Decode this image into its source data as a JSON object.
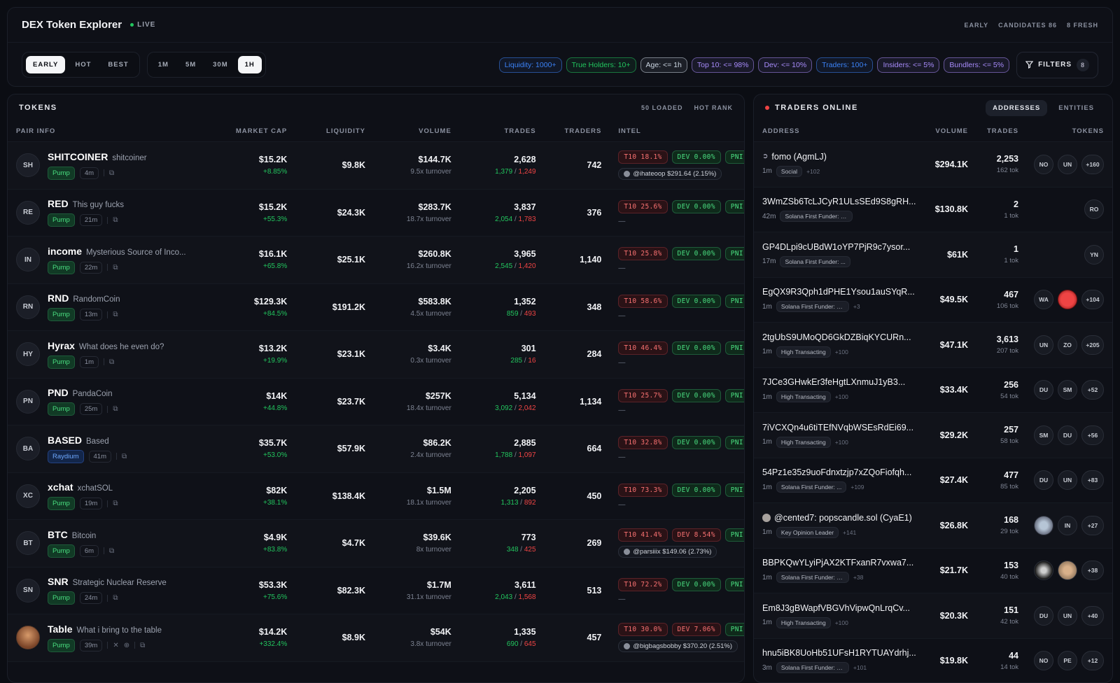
{
  "header": {
    "title": "DEX Token Explorer",
    "live": "LIVE",
    "stats": [
      "EARLY",
      "CANDIDATES 86",
      "8 FRESH"
    ]
  },
  "modes": [
    "EARLY",
    "HOT",
    "BEST"
  ],
  "timeframes": [
    "1M",
    "5M",
    "30M",
    "1H"
  ],
  "filters_chips": [
    {
      "label": "Liquidity: 1000+",
      "color": "#3b82f6"
    },
    {
      "label": "True Holders: 10+",
      "color": "#22c55e"
    },
    {
      "label": "Age: <= 1h",
      "color": "#cbd5e1"
    },
    {
      "label": "Top 10: <= 98%",
      "color": "#a78bfa"
    },
    {
      "label": "Dev: <= 10%",
      "color": "#a78bfa"
    },
    {
      "label": "Traders: 100+",
      "color": "#3b82f6"
    },
    {
      "label": "Insiders: <= 5%",
      "color": "#a78bfa"
    },
    {
      "label": "Bundlers: <= 5%",
      "color": "#a78bfa"
    }
  ],
  "filters_button": {
    "label": "FILTERS",
    "count": "8"
  },
  "tokens_panel": {
    "title": "TOKENS",
    "loaded": "50 LOADED",
    "rank": "HOT RANK",
    "columns": [
      "PAIR INFO",
      "MARKET CAP",
      "LIQUIDITY",
      "VOLUME",
      "TRADES",
      "TRADERS",
      "INTEL"
    ],
    "rows": [
      {
        "av": "SH",
        "sym": "SHITCOINER",
        "name": "shitcoiner",
        "plat": "Pump",
        "age": "4m",
        "mc": "$15.2K",
        "chg": "+8.85%",
        "liq": "$9.8K",
        "vol": "$144.7K",
        "turn": "9.5x turnover",
        "trades": "2,628",
        "buys": "1,379",
        "sells": "1,249",
        "traders": "742",
        "t10": "T10 18.1%",
        "dev": "DEV 0.00%",
        "devc": "green",
        "kol": "@ihateoop $291.64 (2.15%)"
      },
      {
        "av": "RE",
        "sym": "RED",
        "name": "This guy fucks",
        "plat": "Pump",
        "age": "21m",
        "mc": "$15.2K",
        "chg": "+55.3%",
        "liq": "$24.3K",
        "vol": "$283.7K",
        "turn": "18.7x turnover",
        "trades": "3,837",
        "buys": "2,054",
        "sells": "1,783",
        "traders": "376",
        "t10": "T10 25.6%",
        "dev": "DEV 0.00%",
        "devc": "green",
        "kol": ""
      },
      {
        "av": "IN",
        "sym": "income",
        "name": "Mysterious Source of Inco...",
        "plat": "Pump",
        "age": "22m",
        "mc": "$16.1K",
        "chg": "+65.8%",
        "liq": "$25.1K",
        "vol": "$260.8K",
        "turn": "16.2x turnover",
        "trades": "3,965",
        "buys": "2,545",
        "sells": "1,420",
        "traders": "1,140",
        "t10": "T10 25.8%",
        "dev": "DEV 0.00%",
        "devc": "green",
        "kol": ""
      },
      {
        "av": "RN",
        "sym": "RND",
        "name": "RandomCoin",
        "plat": "Pump",
        "age": "13m",
        "mc": "$129.3K",
        "chg": "+84.5%",
        "liq": "$191.2K",
        "vol": "$583.8K",
        "turn": "4.5x turnover",
        "trades": "1,352",
        "buys": "859",
        "sells": "493",
        "traders": "348",
        "t10": "T10 58.6%",
        "dev": "DEV 0.00%",
        "devc": "green",
        "kol": ""
      },
      {
        "av": "HY",
        "sym": "Hyrax",
        "name": "What does he even do?",
        "plat": "Pump",
        "age": "1m",
        "mc": "$13.2K",
        "chg": "+19.9%",
        "liq": "$23.1K",
        "vol": "$3.4K",
        "turn": "0.3x turnover",
        "trades": "301",
        "buys": "285",
        "sells": "16",
        "traders": "284",
        "t10": "T10 46.4%",
        "dev": "DEV 0.00%",
        "devc": "green",
        "kol": ""
      },
      {
        "av": "PN",
        "sym": "PND",
        "name": "PandaCoin",
        "plat": "Pump",
        "age": "25m",
        "mc": "$14K",
        "chg": "+44.8%",
        "liq": "$23.7K",
        "vol": "$257K",
        "turn": "18.4x turnover",
        "trades": "5,134",
        "buys": "3,092",
        "sells": "2,042",
        "traders": "1,134",
        "t10": "T10 25.7%",
        "dev": "DEV 0.00%",
        "devc": "green",
        "kol": ""
      },
      {
        "av": "BA",
        "sym": "BASED",
        "name": "Based",
        "plat": "Raydium",
        "age": "41m",
        "mc": "$35.7K",
        "chg": "+53.0%",
        "liq": "$57.9K",
        "vol": "$86.2K",
        "turn": "2.4x turnover",
        "trades": "2,885",
        "buys": "1,788",
        "sells": "1,097",
        "traders": "664",
        "t10": "T10 32.8%",
        "dev": "DEV 0.00%",
        "devc": "green",
        "kol": ""
      },
      {
        "av": "XC",
        "sym": "xchat",
        "name": "xchatSOL",
        "plat": "Pump",
        "age": "19m",
        "mc": "$82K",
        "chg": "+38.1%",
        "liq": "$138.4K",
        "vol": "$1.5M",
        "turn": "18.1x turnover",
        "trades": "2,205",
        "buys": "1,313",
        "sells": "892",
        "traders": "450",
        "t10": "T10 73.3%",
        "dev": "DEV 0.00%",
        "devc": "green",
        "kol": ""
      },
      {
        "av": "BT",
        "sym": "BTC",
        "name": "Bitcoin",
        "plat": "Pump",
        "age": "6m",
        "mc": "$4.9K",
        "chg": "+83.8%",
        "liq": "$4.7K",
        "vol": "$39.6K",
        "turn": "8x turnover",
        "trades": "773",
        "buys": "348",
        "sells": "425",
        "traders": "269",
        "t10": "T10 41.4%",
        "dev": "DEV 8.54%",
        "devc": "red",
        "kol": "@parsiiix $149.06 (2.73%)"
      },
      {
        "av": "SN",
        "sym": "SNR",
        "name": "Strategic Nuclear Reserve",
        "plat": "Pump",
        "age": "24m",
        "mc": "$53.3K",
        "chg": "+75.6%",
        "liq": "$82.3K",
        "vol": "$1.7M",
        "turn": "31.1x turnover",
        "trades": "3,611",
        "buys": "2,043",
        "sells": "1,568",
        "traders": "513",
        "t10": "T10 72.2%",
        "dev": "DEV 0.00%",
        "devc": "green",
        "kol": ""
      },
      {
        "av": "",
        "sym": "Table",
        "name": "What i bring to the table",
        "plat": "Pump",
        "age": "39m",
        "mc": "$14.2K",
        "chg": "+332.4%",
        "liq": "$8.9K",
        "vol": "$54K",
        "turn": "3.8x turnover",
        "trades": "1,335",
        "buys": "690",
        "sells": "645",
        "traders": "457",
        "t10": "T10 30.0%",
        "dev": "DEV 7.06%",
        "devc": "red",
        "kol": "@bigbagsbobby $370.20 (2.51%)"
      }
    ],
    "pnl_label": "PNI"
  },
  "traders_panel": {
    "title": "TRADERS ONLINE",
    "tabs": [
      "ADDRESSES",
      "ENTITIES"
    ],
    "columns": [
      "ADDRESS",
      "VOLUME",
      "TRADES",
      "TOKENS"
    ],
    "rows": [
      {
        "name": "fomo (AgmLJ)",
        "age": "1m",
        "label": "Social",
        "more": "+102",
        "vol": "$294.1K",
        "trades": "2,253",
        "tok": "162 tok",
        "bubbles": [
          "NO",
          "UN"
        ],
        "extra": "+160"
      },
      {
        "name": "3WmZSb6TcLJCyR1ULsSEd9S8gRH...",
        "age": "42m",
        "label": "Solana First Funder: 9...",
        "more": "",
        "vol": "$130.8K",
        "trades": "2",
        "tok": "1 tok",
        "bubbles": [
          "RO"
        ],
        "extra": ""
      },
      {
        "name": "GP4DLpi9cUBdW1oYP7PjR9c7ysor...",
        "age": "17m",
        "label": "Solana First Funder: ...",
        "more": "",
        "vol": "$61K",
        "trades": "1",
        "tok": "1 tok",
        "bubbles": [
          "YN"
        ],
        "extra": ""
      },
      {
        "name": "EgQX9R3Qph1dPHE1Ysou1auSYqR...",
        "age": "1m",
        "label": "Solana First Funder: 9...",
        "more": "+3",
        "vol": "$49.5K",
        "trades": "467",
        "tok": "106 tok",
        "bubbles": [
          "WA",
          "img-red"
        ],
        "extra": "+104"
      },
      {
        "name": "2tgUbS9UMoQD6GkDZBiqKYCURn...",
        "age": "1m",
        "label": "High Transacting",
        "more": "+100",
        "vol": "$47.1K",
        "trades": "3,613",
        "tok": "207 tok",
        "bubbles": [
          "UN",
          "ZO"
        ],
        "extra": "+205"
      },
      {
        "name": "7JCe3GHwkEr3feHgtLXnmuJ1yB3...",
        "age": "1m",
        "label": "High Transacting",
        "more": "+100",
        "vol": "$33.4K",
        "trades": "256",
        "tok": "54 tok",
        "bubbles": [
          "DU",
          "SM"
        ],
        "extra": "+52"
      },
      {
        "name": "7iVCXQn4u6tiTEfNVqbWSEsRdEi69...",
        "age": "1m",
        "label": "High Transacting",
        "more": "+100",
        "vol": "$29.2K",
        "trades": "257",
        "tok": "58 tok",
        "bubbles": [
          "SM",
          "DU"
        ],
        "extra": "+56"
      },
      {
        "name": "54Pz1e35z9uoFdnxtzjp7xZQoFiofqh...",
        "age": "1m",
        "label": "Solana First Funder: ...",
        "more": "+109",
        "vol": "$27.4K",
        "trades": "477",
        "tok": "85 tok",
        "bubbles": [
          "DU",
          "UN"
        ],
        "extra": "+83"
      },
      {
        "name": "@cented7: popscandle.sol (CyaE1)",
        "age": "1m",
        "label": "Key Opinion Leader",
        "more": "+141",
        "vol": "$26.8K",
        "trades": "168",
        "tok": "29 tok",
        "bubbles": [
          "img-a",
          "IN"
        ],
        "extra": "+27"
      },
      {
        "name": "BBPKQwYLyiPjAX2KTFxanR7vxwa7...",
        "age": "1m",
        "label": "Solana First Funder: 2...",
        "more": "+38",
        "vol": "$21.7K",
        "trades": "153",
        "tok": "40 tok",
        "bubbles": [
          "img-b",
          "img-c"
        ],
        "extra": "+38"
      },
      {
        "name": "Em8J3gBWapfVBGVhVipwQnLrqCv...",
        "age": "1m",
        "label": "High Transacting",
        "more": "+100",
        "vol": "$20.3K",
        "trades": "151",
        "tok": "42 tok",
        "bubbles": [
          "DU",
          "UN"
        ],
        "extra": "+40"
      },
      {
        "name": "hnu5iBK8UoHb51UFsH1RYTUAYdrhj...",
        "age": "3m",
        "label": "Solana First Funder: 1...",
        "more": "+101",
        "vol": "$19.8K",
        "trades": "44",
        "tok": "14 tok",
        "bubbles": [
          "NO",
          "PE"
        ],
        "extra": "+12"
      }
    ]
  }
}
